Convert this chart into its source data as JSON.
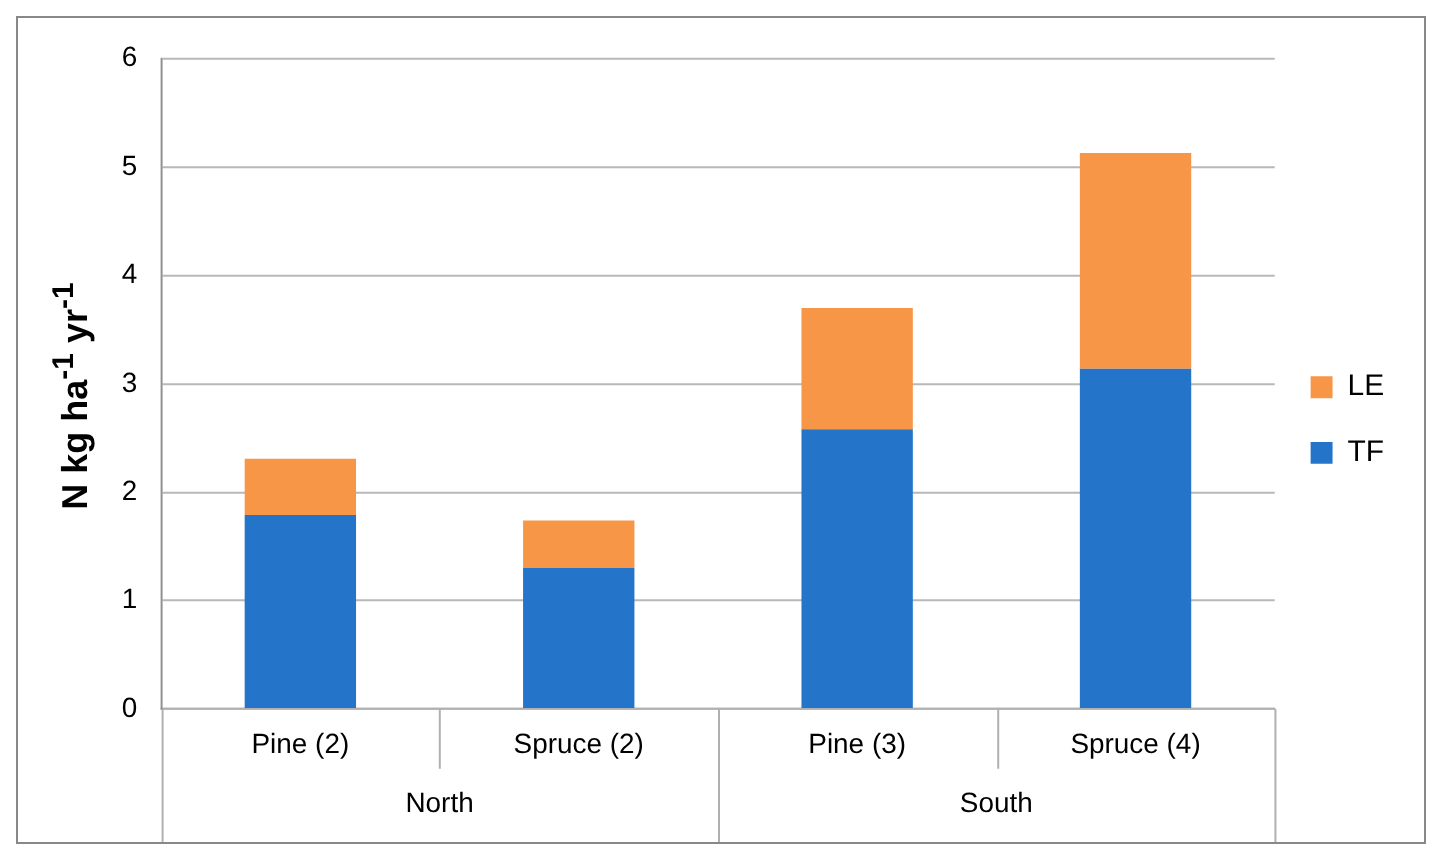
{
  "chart_data": {
    "type": "bar",
    "stacked": true,
    "ylabel": "N kg ha$^{-1}$ yr$^{-1}$",
    "categories": [
      "Pine (2)",
      "Spruce (2)",
      "Pine (3)",
      "Spruce (4)"
    ],
    "annotations": [
      "North",
      "South"
    ],
    "series": [
      {
        "name": "TF",
        "color": "#2474c9",
        "values": [
          1.79,
          1.3,
          2.58,
          3.14
        ]
      },
      {
        "name": "LE",
        "color": "#f79647",
        "values": [
          0.52,
          0.44,
          1.12,
          1.99
        ]
      }
    ],
    "ylim": [
      0,
      6
    ],
    "yticks": [
      0,
      1,
      2,
      3,
      4,
      5,
      6
    ],
    "grid": "y",
    "legend": "right"
  }
}
